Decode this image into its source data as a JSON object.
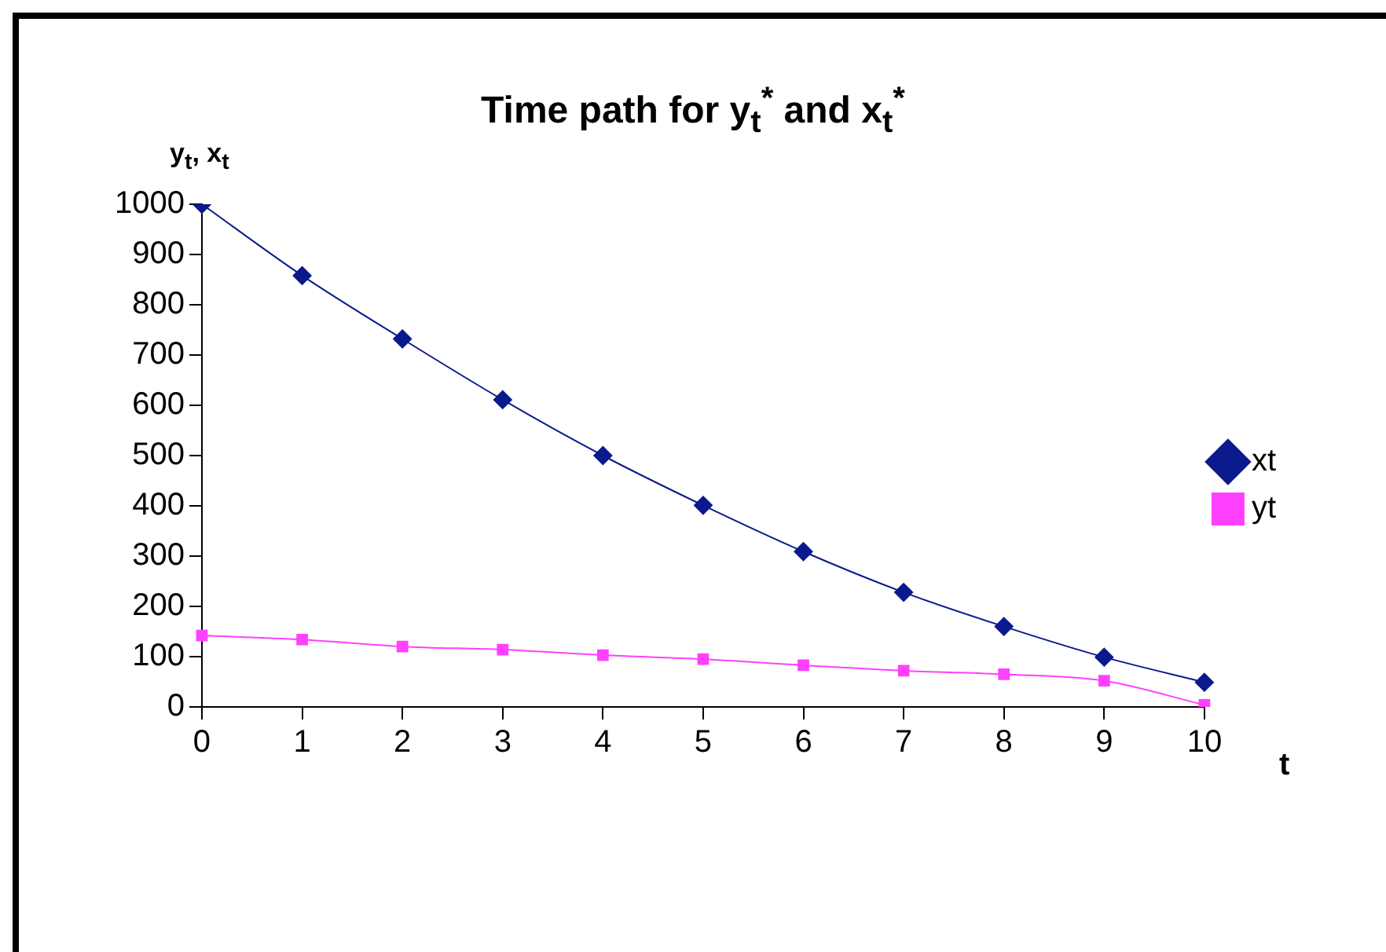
{
  "chart_data": {
    "type": "line",
    "title": "Time path for y$_{t}$$^{*}$ and x$_{t}$$^{*}$",
    "ylabel": "y$_{t}$, x$_{t}$",
    "xlabel": "t",
    "categories": [
      "0",
      "1",
      "2",
      "3",
      "4",
      "5",
      "6",
      "7",
      "8",
      "9",
      "10"
    ],
    "series": [
      {
        "name": "xt",
        "color": "#0a1a8c",
        "marker": "diamond",
        "values": [
          1000,
          858,
          732,
          611,
          500,
          401,
          309,
          228,
          160,
          99,
          49
        ]
      },
      {
        "name": "yt",
        "color": "#ff40ff",
        "marker": "square",
        "values": [
          142,
          134,
          120,
          114,
          103,
          95,
          83,
          72,
          65,
          52,
          4
        ]
      }
    ],
    "ylim": [
      0,
      1000
    ],
    "yticks": [
      0,
      100,
      200,
      300,
      400,
      500,
      600,
      700,
      800,
      900,
      1000
    ],
    "grid": false,
    "legend": "right",
    "line_style": "solid"
  }
}
